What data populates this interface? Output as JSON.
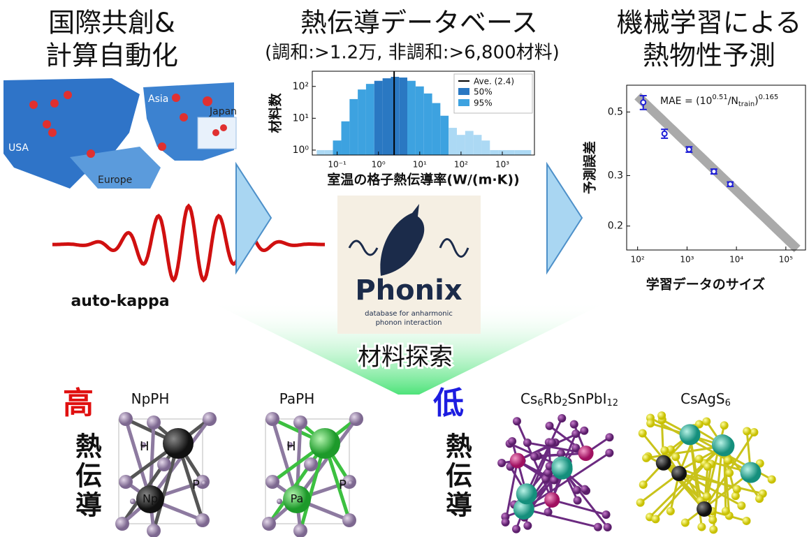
{
  "left": {
    "title": [
      "国際共創&",
      "計算自動化"
    ],
    "map_labels": [
      "USA",
      "Europe",
      "Asia",
      "Japan"
    ],
    "logo": "auto-kappa"
  },
  "center": {
    "title": "熱伝導データベース",
    "subtitle": "(調和:>1.2万, 非調和:>6,800材料)",
    "logo": "Phonix",
    "logo_sub": [
      "database for anharmonic",
      "phonon interaction"
    ]
  },
  "right": {
    "title": [
      "機械学習による",
      "熱物性予測"
    ]
  },
  "bottom": {
    "label": "材料探索",
    "high": [
      "高",
      "熱",
      "伝",
      "導"
    ],
    "low": [
      "低",
      "熱",
      "伝",
      "導"
    ],
    "materials": [
      {
        "name_parts": [
          {
            "text": "NpPH"
          }
        ],
        "atoms": [
          "H",
          "P",
          "Np"
        ]
      },
      {
        "name_parts": [
          {
            "text": "PaPH"
          }
        ],
        "atoms": [
          "H",
          "P",
          "Pa"
        ]
      },
      {
        "name_parts": [
          {
            "text": "Cs"
          },
          {
            "sub": "6"
          },
          {
            "text": "Rb"
          },
          {
            "sub": "2"
          },
          {
            "text": "SnPbI"
          },
          {
            "sub": "12"
          }
        ]
      },
      {
        "name_parts": [
          {
            "text": "CsAgS"
          },
          {
            "sub": "6"
          }
        ]
      }
    ]
  },
  "chart_data": [
    {
      "type": "histogram",
      "ylabel": "材料数",
      "xlabel": "室温の格子熱伝導率(W/(m·K))",
      "bins": [
        0.032,
        0.05,
        0.079,
        0.126,
        0.2,
        0.316,
        0.5,
        0.794,
        1.26,
        2,
        3.16,
        5,
        7.94,
        12.6,
        20,
        31.6,
        50,
        79.4,
        126,
        200,
        316,
        501,
        794,
        1260,
        2000,
        3160,
        5010
      ],
      "values": [
        1,
        1,
        2,
        8,
        40,
        80,
        120,
        150,
        180,
        200,
        190,
        150,
        100,
        60,
        30,
        12,
        5,
        3,
        4,
        3,
        2,
        1,
        1,
        1,
        1,
        1
      ],
      "color": "#acd9f4",
      "series": [
        {
          "name": "50%",
          "color": "#2a78c2",
          "range": [
            0.9,
            5.5
          ]
        },
        {
          "name": "95%",
          "color": "#3da2e0",
          "range": [
            0.09,
            40
          ]
        }
      ],
      "mean": {
        "name": "Ave. (2.4)",
        "value": 2.4,
        "color": "#000000"
      },
      "xlog": true,
      "ylog": true,
      "xlim": [
        0.025,
        6000
      ],
      "ylim": [
        0.7,
        300
      ],
      "xticks": [
        {
          "value": 0.1,
          "label": "10⁻¹"
        },
        {
          "value": 1,
          "label": "10⁰"
        },
        {
          "value": 10,
          "label": "10¹"
        },
        {
          "value": 100,
          "label": "10²"
        },
        {
          "value": 1000,
          "label": "10³"
        }
      ],
      "yticks": [
        {
          "value": 1,
          "label": "10⁰"
        },
        {
          "value": 10,
          "label": "10¹"
        },
        {
          "value": 100,
          "label": "10²"
        }
      ]
    },
    {
      "type": "scatter",
      "ylabel": "予測誤差",
      "xlabel": "学習データのサイズ",
      "x": [
        130,
        350,
        1100,
        3500,
        7500
      ],
      "values": [
        0.54,
        0.42,
        0.37,
        0.31,
        0.28
      ],
      "errors": [
        0.03,
        0.015,
        0.008,
        0.006,
        0.005
      ],
      "color": "#1f1fd6",
      "fit": {
        "prefix": "MAE = (10",
        "a": 0.51,
        "mid": "/N",
        "sub": "train",
        "close": ")",
        "b": 0.165,
        "xrange": [
          100,
          170000
        ],
        "color": "#aaaaaa"
      },
      "xlog": true,
      "ylog": true,
      "xlim": [
        60,
        250000
      ],
      "ylim": [
        0.165,
        0.62
      ],
      "xticks": [
        {
          "value": 100,
          "label": "10²"
        },
        {
          "value": 1000,
          "label": "10³"
        },
        {
          "value": 10000,
          "label": "10⁴"
        },
        {
          "value": 100000,
          "label": "10⁵"
        }
      ],
      "yticks": [
        0.2,
        0.3,
        0.5
      ]
    }
  ]
}
